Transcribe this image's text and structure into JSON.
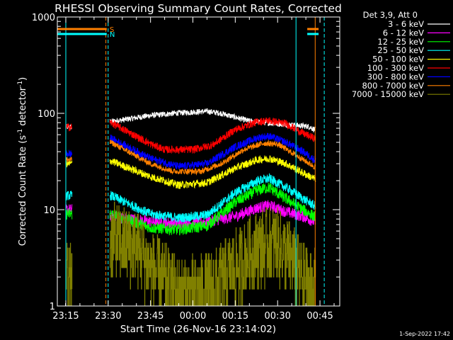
{
  "chart_data": {
    "type": "line",
    "title": "RHESSI Observing Summary Count Rates, Corrected",
    "xlabel": "Start Time (26-Nov-16 23:14:02)",
    "ylabel_main": "Corrected Count Rate (s",
    "ylabel_sup1": "-1",
    "ylabel_mid": " detector",
    "ylabel_sup2": "-1",
    "ylabel_end": ")",
    "y_scale": "log",
    "ylim": [
      1,
      1000
    ],
    "xlim_minutes": [
      -3,
      97
    ],
    "x_ticks": [
      {
        "label": "23:15",
        "min": 0
      },
      {
        "label": "23:30",
        "min": 15
      },
      {
        "label": "23:45",
        "min": 30
      },
      {
        "label": "00:00",
        "min": 45
      },
      {
        "label": "00:15",
        "min": 60
      },
      {
        "label": "00:30",
        "min": 75
      },
      {
        "label": "00:45",
        "min": 90
      }
    ],
    "y_ticks": [
      {
        "label": "1",
        "value": 1
      },
      {
        "label": "10",
        "value": 10
      },
      {
        "label": "100",
        "value": 100
      },
      {
        "label": "1000",
        "value": 1000
      }
    ],
    "legend": {
      "header": "Det 3,9, Att 0",
      "position": "top-right",
      "entries": [
        {
          "label": "3 - 6 keV",
          "color": "#ffffff"
        },
        {
          "label": "6 - 12 keV",
          "color": "#ff00ff"
        },
        {
          "label": "12 - 25 keV",
          "color": "#00ff00"
        },
        {
          "label": "25 - 50 keV",
          "color": "#00ffff"
        },
        {
          "label": "50 - 100 keV",
          "color": "#ffff00"
        },
        {
          "label": "100 - 300 keV",
          "color": "#ff0000"
        },
        {
          "label": "300 - 800 keV",
          "color": "#0000ff"
        },
        {
          "label": "800 - 7000 keV",
          "color": "#ff8000"
        },
        {
          "label": "7000 - 15000 keV",
          "color": "#808000"
        }
      ]
    },
    "flags": [
      {
        "label": "S",
        "color": "#ff8000",
        "segments": [
          [
            -3,
            14.5
          ],
          [
            85.5,
            89.5
          ]
        ]
      },
      {
        "label": "N",
        "color": "#00ffff",
        "segments": [
          [
            -3,
            14.5
          ],
          [
            85.5,
            89.5
          ]
        ]
      }
    ],
    "vertical_lines": [
      {
        "min": 0,
        "color": "#00ffff",
        "style": "solid"
      },
      {
        "min": 14.2,
        "color": "#ff8000",
        "style": "dashed"
      },
      {
        "min": 15,
        "color": "#00ffff",
        "style": "dashed"
      },
      {
        "min": 81.5,
        "color": "#00ffff",
        "style": "solid"
      },
      {
        "min": 88.3,
        "color": "#ff8000",
        "style": "solid"
      },
      {
        "min": 91.5,
        "color": "#00ffff",
        "style": "dashed"
      }
    ],
    "series": [
      {
        "name": "3 - 6 keV",
        "color": "#ffffff",
        "noise": 0.03,
        "early": 72,
        "late": 72,
        "keys": [
          [
            16,
            82
          ],
          [
            30,
            95
          ],
          [
            40,
            101
          ],
          [
            50,
            105
          ],
          [
            55,
            100
          ],
          [
            65,
            83
          ],
          [
            75,
            78
          ],
          [
            84,
            74
          ],
          [
            86,
            73
          ],
          [
            88,
            68
          ]
        ]
      },
      {
        "name": "6 - 12 keV",
        "color": "#ff00ff",
        "noise": 0.06,
        "early": 10,
        "late": 10,
        "keys": [
          [
            16,
            8.5
          ],
          [
            30,
            7.5
          ],
          [
            40,
            7.2
          ],
          [
            50,
            7.5
          ],
          [
            60,
            8.5
          ],
          [
            68,
            10.5
          ],
          [
            72,
            11
          ],
          [
            78,
            9.5
          ],
          [
            84,
            8.5
          ],
          [
            88,
            7.5
          ]
        ]
      },
      {
        "name": "12 - 25 keV",
        "color": "#00ff00",
        "noise": 0.06,
        "early": 9,
        "late": 9,
        "keys": [
          [
            16,
            9
          ],
          [
            30,
            6.5
          ],
          [
            40,
            6.2
          ],
          [
            50,
            6.8
          ],
          [
            60,
            12
          ],
          [
            68,
            16
          ],
          [
            72,
            17
          ],
          [
            78,
            13
          ],
          [
            84,
            10
          ],
          [
            88,
            8.5
          ]
        ]
      },
      {
        "name": "25 - 50 keV",
        "color": "#00ffff",
        "noise": 0.05,
        "early": 14,
        "late": 14,
        "keys": [
          [
            16,
            14
          ],
          [
            30,
            9
          ],
          [
            40,
            8.2
          ],
          [
            50,
            8.8
          ],
          [
            60,
            15
          ],
          [
            68,
            20
          ],
          [
            72,
            21
          ],
          [
            78,
            17
          ],
          [
            84,
            13
          ],
          [
            88,
            11
          ]
        ]
      },
      {
        "name": "50 - 100 keV",
        "color": "#ffff00",
        "noise": 0.04,
        "early": 30,
        "late": 30,
        "keys": [
          [
            16,
            32
          ],
          [
            30,
            22
          ],
          [
            40,
            18
          ],
          [
            50,
            19
          ],
          [
            60,
            27
          ],
          [
            68,
            33
          ],
          [
            72,
            34
          ],
          [
            78,
            30
          ],
          [
            84,
            24
          ],
          [
            88,
            21
          ]
        ]
      },
      {
        "name": "100 - 300 keV",
        "color": "#ff0000",
        "noise": 0.04,
        "early": 72,
        "late": 72,
        "keys": [
          [
            16,
            80
          ],
          [
            30,
            48
          ],
          [
            35,
            42
          ],
          [
            45,
            42
          ],
          [
            52,
            47
          ],
          [
            60,
            68
          ],
          [
            68,
            82
          ],
          [
            72,
            84
          ],
          [
            78,
            78
          ],
          [
            84,
            62
          ],
          [
            88,
            55
          ]
        ]
      },
      {
        "name": "300 - 800 keV",
        "color": "#0000ff",
        "noise": 0.04,
        "early": 38,
        "late": 38,
        "keys": [
          [
            16,
            55
          ],
          [
            30,
            34
          ],
          [
            40,
            28
          ],
          [
            50,
            30
          ],
          [
            60,
            45
          ],
          [
            68,
            56
          ],
          [
            72,
            58
          ],
          [
            78,
            50
          ],
          [
            84,
            40
          ],
          [
            88,
            33
          ]
        ]
      },
      {
        "name": "800 - 7000 keV",
        "color": "#ff8000",
        "noise": 0.03,
        "early": 33,
        "late": 33,
        "keys": [
          [
            16,
            50
          ],
          [
            30,
            30
          ],
          [
            38,
            25
          ],
          [
            48,
            25
          ],
          [
            55,
            30
          ],
          [
            63,
            42
          ],
          [
            70,
            49
          ],
          [
            75,
            48
          ],
          [
            82,
            36
          ],
          [
            88,
            28
          ]
        ]
      },
      {
        "name": "7000 - 15000 keV",
        "color": "#808000",
        "noise": 0.5,
        "early": 2,
        "late": 3,
        "keys": [
          [
            16,
            5
          ],
          [
            25,
            4
          ],
          [
            30,
            2.5
          ],
          [
            40,
            1.3
          ],
          [
            50,
            1.4
          ],
          [
            60,
            2.5
          ],
          [
            68,
            4
          ],
          [
            74,
            4.5
          ],
          [
            80,
            3
          ],
          [
            84,
            1.8
          ],
          [
            88,
            1.5
          ]
        ]
      }
    ]
  },
  "footer": {
    "date": "1-Sep-2022 17:42"
  }
}
